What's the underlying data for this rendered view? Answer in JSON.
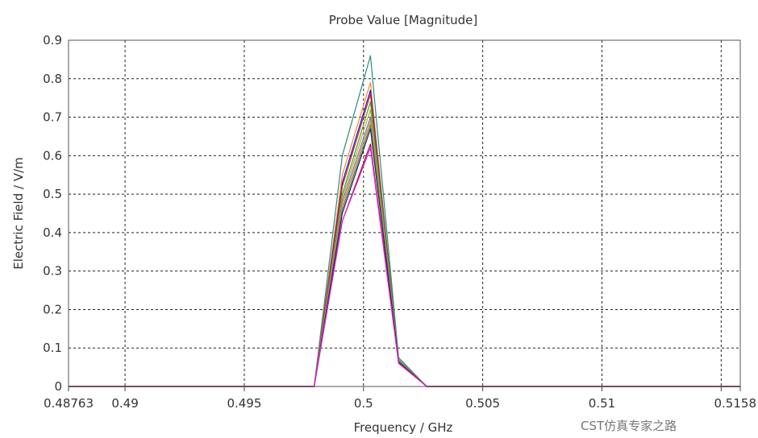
{
  "chart_data": {
    "type": "line",
    "title": "Probe Value [Magnitude]",
    "xlabel": "Frequency / GHz",
    "ylabel": "Electric Field / V/m",
    "xlim": [
      0.48763,
      0.5158
    ],
    "ylim": [
      0,
      0.9
    ],
    "grid": true,
    "x_ticks": [
      {
        "value": 0.48763,
        "label": "0.48763"
      },
      {
        "value": 0.49,
        "label": "0.49"
      },
      {
        "value": 0.495,
        "label": "0.495"
      },
      {
        "value": 0.5,
        "label": "0.5"
      },
      {
        "value": 0.505,
        "label": "0.505"
      },
      {
        "value": 0.51,
        "label": "0.51"
      },
      {
        "value": 0.515,
        "label": ""
      },
      {
        "value": 0.5158,
        "label": "0.5158"
      }
    ],
    "y_ticks": [
      "0",
      "0.1",
      "0.2",
      "0.3",
      "0.4",
      "0.5",
      "0.6",
      "0.7",
      "0.8",
      "0.9"
    ],
    "x": [
      0.48763,
      0.49793,
      0.49911,
      0.50029,
      0.50147,
      0.50265,
      0.5158
    ],
    "series": [
      {
        "color": "#2a8c7c",
        "values": [
          0,
          0,
          0.6,
          0.86,
          0.075,
          0,
          0
        ]
      },
      {
        "color": "#f08a30",
        "values": [
          0,
          0,
          0.55,
          0.79,
          0.07,
          0,
          0
        ]
      },
      {
        "color": "#1a1ad0",
        "values": [
          0,
          0,
          0.53,
          0.77,
          0.07,
          0,
          0
        ]
      },
      {
        "color": "#d02020",
        "values": [
          0,
          0,
          0.52,
          0.76,
          0.068,
          0,
          0
        ]
      },
      {
        "color": "#3aa040",
        "values": [
          0,
          0,
          0.5,
          0.74,
          0.07,
          0,
          0
        ]
      },
      {
        "color": "#b0b020",
        "values": [
          0,
          0,
          0.49,
          0.72,
          0.068,
          0,
          0
        ]
      },
      {
        "color": "#7a70d0",
        "values": [
          0,
          0,
          0.48,
          0.7,
          0.066,
          0,
          0
        ]
      },
      {
        "color": "#e0a020",
        "values": [
          0,
          0,
          0.47,
          0.69,
          0.065,
          0,
          0
        ]
      },
      {
        "color": "#608060",
        "values": [
          0,
          0,
          0.46,
          0.68,
          0.065,
          0,
          0
        ]
      },
      {
        "color": "#202060",
        "values": [
          0,
          0,
          0.45,
          0.67,
          0.064,
          0,
          0
        ]
      },
      {
        "color": "#901030",
        "values": [
          0,
          0,
          0.43,
          0.63,
          0.062,
          0,
          0
        ]
      },
      {
        "color": "#e020e0",
        "values": [
          0,
          0,
          0.43,
          0.62,
          0.06,
          0,
          0
        ]
      }
    ]
  },
  "watermark": "CST仿真专家之路"
}
